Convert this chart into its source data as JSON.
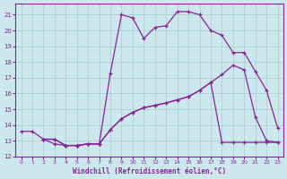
{
  "bg_color": "#cce8ec",
  "grid_color": "#aacccc",
  "line_color": "#882299",
  "xlabel": "Windchill (Refroidissement éolien,°C)",
  "xlim": [
    -0.5,
    23.5
  ],
  "ylim": [
    12,
    21.7
  ],
  "yticks": [
    12,
    13,
    14,
    15,
    16,
    17,
    18,
    19,
    20,
    21
  ],
  "xticks": [
    0,
    1,
    2,
    3,
    4,
    5,
    6,
    7,
    8,
    9,
    10,
    11,
    12,
    13,
    14,
    15,
    16,
    17,
    18,
    19,
    20,
    21,
    22,
    23
  ],
  "line1_x": [
    0,
    1,
    2,
    3,
    4,
    5,
    6,
    7,
    8,
    9,
    10,
    11,
    12,
    13,
    14,
    15,
    16,
    17,
    18,
    19,
    20,
    21,
    22,
    23
  ],
  "line1_y": [
    13.6,
    13.6,
    13.1,
    13.1,
    12.7,
    12.7,
    12.8,
    12.8,
    17.3,
    21.0,
    20.8,
    19.5,
    20.2,
    20.3,
    21.2,
    21.2,
    21.0,
    20.0,
    19.7,
    18.6,
    18.6,
    17.4,
    16.2,
    13.8
  ],
  "line2_x": [
    2,
    3,
    4,
    5,
    6,
    7,
    8,
    9,
    10,
    11,
    12,
    13,
    14,
    15,
    16,
    17,
    18,
    19,
    20,
    21,
    22,
    23
  ],
  "line2_y": [
    13.1,
    13.1,
    12.7,
    12.7,
    12.8,
    12.8,
    13.7,
    14.4,
    14.8,
    15.1,
    15.25,
    15.4,
    15.6,
    15.8,
    16.2,
    16.7,
    17.2,
    17.8,
    17.5,
    14.5,
    13.0,
    12.9
  ],
  "line3_x": [
    2,
    3,
    4,
    5,
    6,
    7,
    8,
    9,
    10,
    11,
    12,
    13,
    14,
    15,
    16,
    17,
    18,
    19,
    20,
    21,
    22,
    23
  ],
  "line3_y": [
    13.1,
    12.8,
    12.7,
    12.7,
    12.8,
    12.8,
    13.7,
    14.4,
    14.8,
    15.1,
    15.25,
    15.4,
    15.6,
    15.8,
    16.2,
    16.7,
    12.9,
    12.9,
    12.9,
    12.9,
    12.9,
    12.9
  ]
}
